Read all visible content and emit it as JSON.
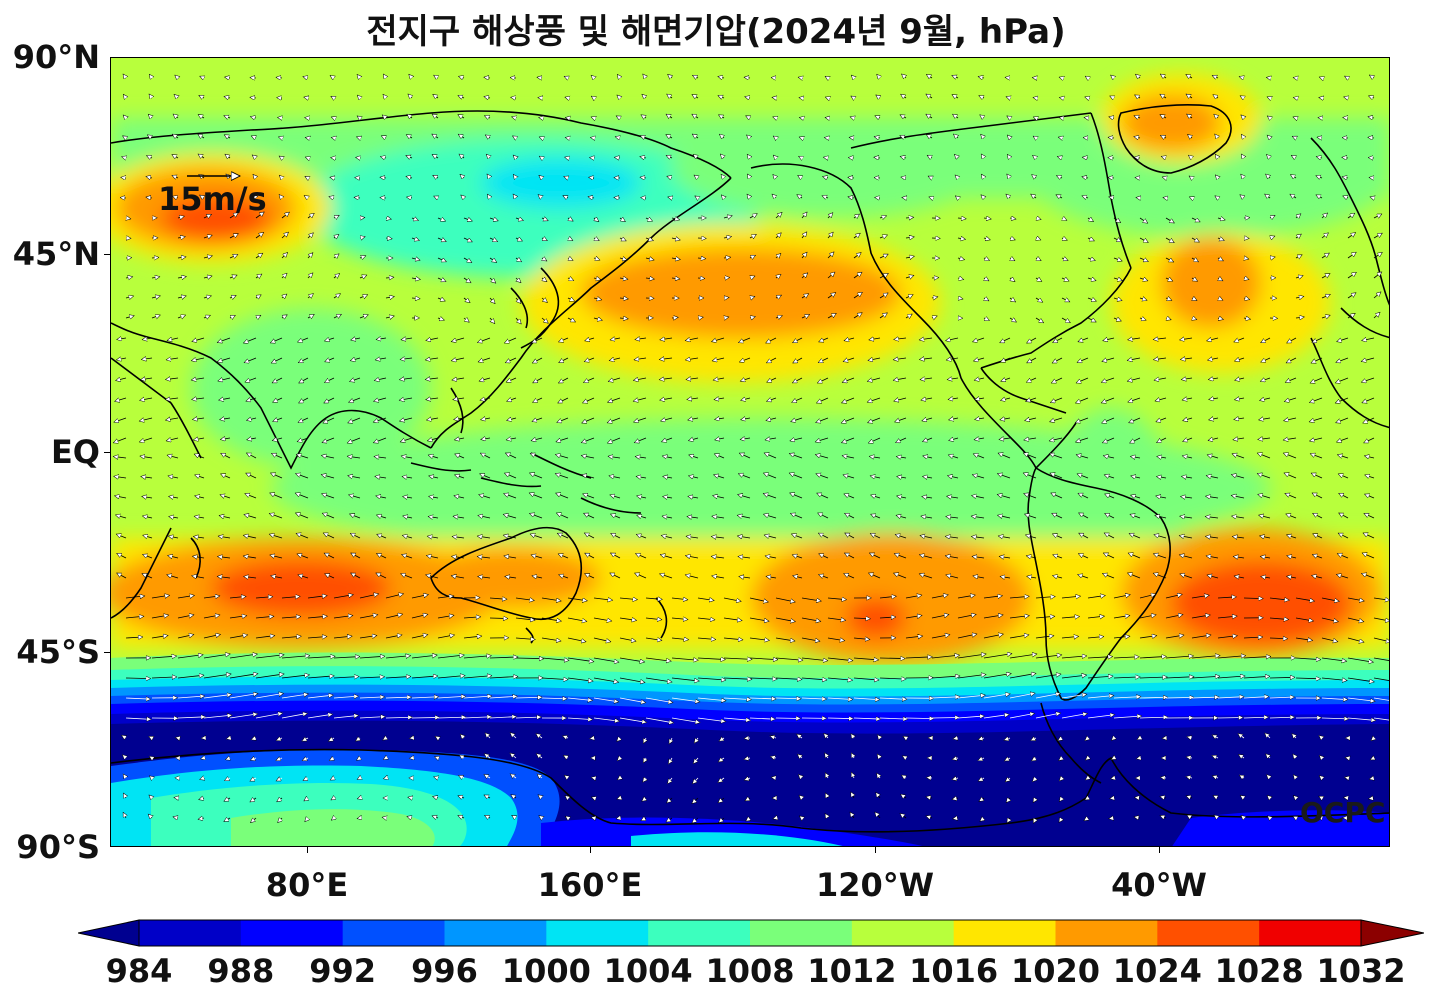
{
  "title": "전지구 해상풍 및 해면기압(2024년 9월, hPa)",
  "lat_labels": [
    "90°N",
    "45°N",
    "EQ",
    "45°S",
    "90°S"
  ],
  "lon_labels": [
    "80°E",
    "160°E",
    "120°W",
    "40°W"
  ],
  "vector_reference": "15m/s",
  "credit": "OCPC",
  "colorbar": {
    "ticks": [
      "984",
      "988",
      "992",
      "996",
      "1000",
      "1004",
      "1008",
      "1012",
      "1016",
      "1020",
      "1024",
      "1028",
      "1032"
    ],
    "colors": [
      "#000090",
      "#0000c8",
      "#0000ff",
      "#0050ff",
      "#0096ff",
      "#00e4f4",
      "#3cffbe",
      "#7aff7a",
      "#b8ff3c",
      "#ffe600",
      "#ff9a00",
      "#ff5000",
      "#f00000",
      "#8c0000"
    ]
  }
}
